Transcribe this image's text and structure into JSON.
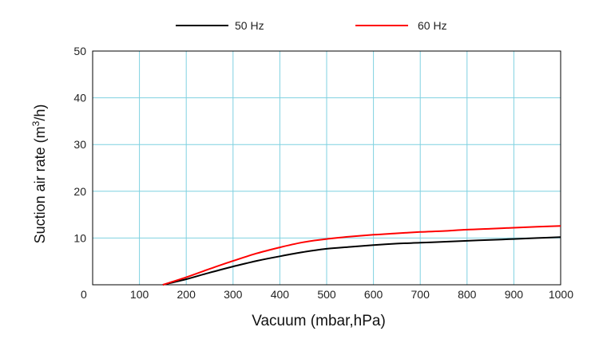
{
  "chart_data": {
    "type": "line",
    "xlabel": "Vacuum (mbar,hPa)",
    "ylabel": "Suction air rate (m",
    "ylabel_sup": "3",
    "ylabel_tail": "/h)",
    "xlim": [
      0,
      1000
    ],
    "ylim": [
      0,
      50
    ],
    "x_ticks": [
      0,
      100,
      200,
      300,
      400,
      500,
      600,
      700,
      800,
      900,
      1000
    ],
    "y_ticks": [
      10,
      20,
      30,
      40,
      50
    ],
    "grid": true,
    "legend_position": "top",
    "series": [
      {
        "name": "50 Hz",
        "color": "#000000",
        "x": [
          150,
          200,
          250,
          300,
          350,
          400,
          450,
          500,
          550,
          600,
          650,
          700,
          750,
          800,
          850,
          900,
          950,
          1000
        ],
        "y": [
          0,
          1.2,
          2.6,
          3.9,
          5.1,
          6.1,
          7.0,
          7.7,
          8.1,
          8.5,
          8.8,
          9.0,
          9.2,
          9.4,
          9.6,
          9.8,
          10.0,
          10.2
        ]
      },
      {
        "name": "60 Hz",
        "color": "#ff0000",
        "x": [
          150,
          200,
          250,
          300,
          350,
          400,
          450,
          500,
          550,
          600,
          650,
          700,
          750,
          800,
          850,
          900,
          950,
          1000
        ],
        "y": [
          0,
          1.6,
          3.4,
          5.1,
          6.7,
          8.0,
          9.1,
          9.8,
          10.3,
          10.7,
          11.0,
          11.3,
          11.5,
          11.8,
          12.0,
          12.2,
          12.4,
          12.6
        ]
      }
    ]
  },
  "colors": {
    "grid": "#7fd1e0",
    "axis": "#000000"
  }
}
